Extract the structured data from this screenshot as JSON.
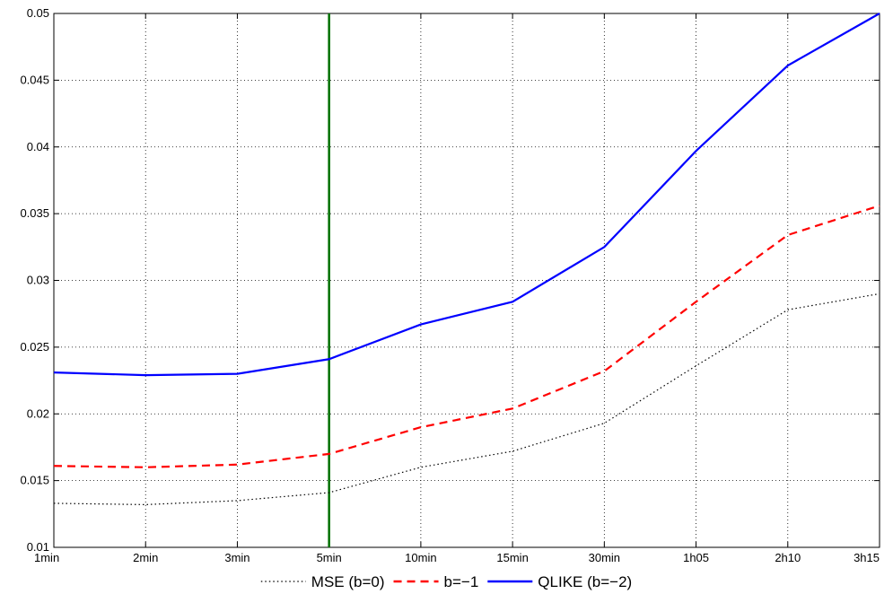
{
  "chart_data": {
    "type": "line",
    "categories": [
      "1min",
      "2min",
      "3min",
      "5min",
      "10min",
      "15min",
      "30min",
      "1h05",
      "2h10",
      "3h15"
    ],
    "ylim": [
      0.01,
      0.05
    ],
    "yticks": [
      "0.01",
      "0.015",
      "0.02",
      "0.025",
      "0.03",
      "0.035",
      "0.04",
      "0.045",
      "0.05"
    ],
    "grid": true,
    "legend_position": "bottom",
    "vertical_marker": {
      "category": "5min",
      "color": "#007000"
    },
    "series": [
      {
        "name": "MSE (b=0)",
        "style": "dotted",
        "color": "#000000",
        "values": [
          0.0133,
          0.0132,
          0.0135,
          0.0141,
          0.016,
          0.0172,
          0.0193,
          0.0236,
          0.0278,
          0.029
        ]
      },
      {
        "name": "b=−1",
        "style": "dashed",
        "color": "#ff0000",
        "values": [
          0.0161,
          0.016,
          0.0162,
          0.017,
          0.019,
          0.0204,
          0.0232,
          0.0284,
          0.0334,
          0.0356
        ]
      },
      {
        "name": "QLIKE (b=−2)",
        "style": "solid",
        "color": "#0000ff",
        "values": [
          0.0231,
          0.0229,
          0.023,
          0.0241,
          0.0267,
          0.0284,
          0.0325,
          0.0397,
          0.0461,
          0.05
        ]
      }
    ]
  }
}
